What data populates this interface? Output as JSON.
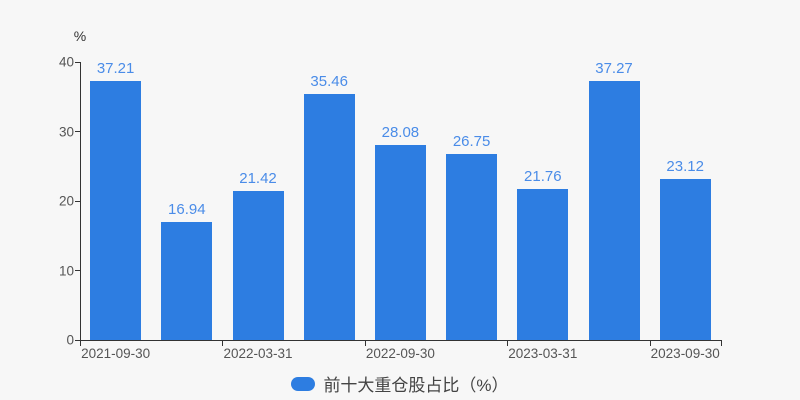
{
  "chart_data": {
    "type": "bar",
    "title": "",
    "values": [
      37.21,
      16.94,
      21.42,
      35.46,
      28.08,
      26.75,
      21.76,
      37.27,
      23.12
    ],
    "num_bars": 9,
    "x_tick_labels": [
      "2021-09-30",
      "2022-03-31",
      "2022-09-30",
      "2023-03-31",
      "2023-09-30"
    ],
    "x_tick_label_bar_indices": [
      0,
      2,
      4,
      6,
      8
    ],
    "x_boundary_tick_positions": [
      0,
      2,
      4,
      6,
      8,
      9
    ],
    "y_axis": {
      "unit": "%",
      "ticks": [
        0,
        10,
        20,
        30,
        40
      ],
      "min": 0,
      "max": 40
    },
    "grid": "off",
    "legend": {
      "position": "bottom-center",
      "items": [
        {
          "label": "前十大重仓股占比（%）",
          "color": "#2d7de1"
        }
      ]
    },
    "colors": {
      "bar": "#2d7de1",
      "value_label": "#4a8ce8",
      "axis_line": "#333333",
      "tick_label": "#555555",
      "legend_text": "#444444",
      "background": "#f7f7f7"
    }
  }
}
